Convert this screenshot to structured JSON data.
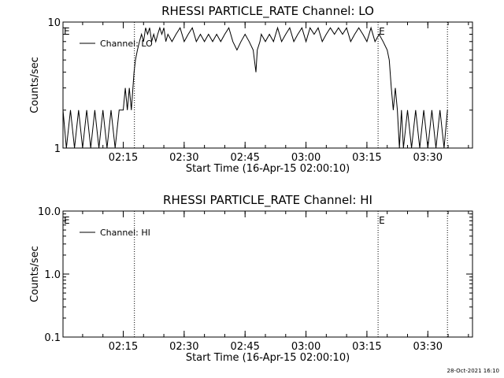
{
  "footer": {
    "timestamp": "28-Oct-2021 16:10"
  },
  "chart_data": [
    {
      "type": "line",
      "title": "RHESSI PARTICLE_RATE Channel: LO",
      "xlabel": "Start Time (16-Apr-15 02:00:10)",
      "ylabel": "Counts/sec",
      "y_scale": "log",
      "xlim": [
        "02:00:10",
        "03:41:00"
      ],
      "ylim": [
        1,
        10
      ],
      "x_ticks": [
        "02:15",
        "02:30",
        "02:45",
        "03:00",
        "03:15",
        "03:30"
      ],
      "y_ticks": [
        "1",
        "10"
      ],
      "legend": {
        "placement": "top-left"
      },
      "vertical_markers": [
        {
          "x": "02:17:45",
          "label": ""
        },
        {
          "x": "03:17:45",
          "label": "E"
        },
        {
          "x": "03:34:50",
          "label": ""
        }
      ],
      "left_marker_label": "E",
      "series": [
        {
          "name": "Channel: LO",
          "color": "#000000",
          "x": [
            "02:00:10",
            "02:01:00",
            "02:02:00",
            "02:03:00",
            "02:04:00",
            "02:05:00",
            "02:06:00",
            "02:07:00",
            "02:08:00",
            "02:09:00",
            "02:10:00",
            "02:11:00",
            "02:12:00",
            "02:13:00",
            "02:14:00",
            "02:15:00",
            "02:15:30",
            "02:16:00",
            "02:16:30",
            "02:17:00",
            "02:17:40",
            "02:18:00",
            "02:18:30",
            "02:19:00",
            "02:19:30",
            "02:20:00",
            "02:20:30",
            "02:21:00",
            "02:21:30",
            "02:22:00",
            "02:22:30",
            "02:23:00",
            "02:23:30",
            "02:24:00",
            "02:24:30",
            "02:25:00",
            "02:25:30",
            "02:26:00",
            "02:27:00",
            "02:28:00",
            "02:29:00",
            "02:30:00",
            "02:31:00",
            "02:32:00",
            "02:33:00",
            "02:34:00",
            "02:35:00",
            "02:36:00",
            "02:37:00",
            "02:38:00",
            "02:39:00",
            "02:40:00",
            "02:41:00",
            "02:42:00",
            "02:43:00",
            "02:44:00",
            "02:45:00",
            "02:46:00",
            "02:47:00",
            "02:47:40",
            "02:48:00",
            "02:48:40",
            "02:49:00",
            "02:50:00",
            "02:51:00",
            "02:52:00",
            "02:53:00",
            "02:54:00",
            "02:55:00",
            "02:56:00",
            "02:57:00",
            "02:58:00",
            "02:59:00",
            "03:00:00",
            "03:01:00",
            "03:02:00",
            "03:03:00",
            "03:04:00",
            "03:05:00",
            "03:06:00",
            "03:07:00",
            "03:08:00",
            "03:09:00",
            "03:10:00",
            "03:11:00",
            "03:12:00",
            "03:13:00",
            "03:14:00",
            "03:15:00",
            "03:16:00",
            "03:17:00",
            "03:18:00",
            "03:19:00",
            "03:20:00",
            "03:20:30",
            "03:21:00",
            "03:21:30",
            "03:22:00",
            "03:22:30",
            "03:23:00",
            "03:23:30",
            "03:24:00",
            "03:25:00",
            "03:26:00",
            "03:27:00",
            "03:28:00",
            "03:29:00",
            "03:30:00",
            "03:31:00",
            "03:32:00",
            "03:33:00",
            "03:34:00",
            "03:34:50"
          ],
          "y": [
            2,
            1,
            2,
            1,
            2,
            1,
            2,
            1,
            2,
            1,
            2,
            1,
            2,
            1,
            2,
            2,
            3,
            2,
            3,
            2,
            4,
            5,
            6,
            7,
            8,
            7,
            9,
            8,
            9,
            7,
            8,
            7,
            8,
            9,
            8,
            9,
            7,
            8,
            7,
            8,
            9,
            7,
            8,
            9,
            7,
            8,
            7,
            8,
            7,
            8,
            7,
            8,
            9,
            7,
            6,
            7,
            8,
            7,
            6,
            4,
            6,
            7,
            8,
            7,
            8,
            7,
            9,
            7,
            8,
            9,
            7,
            8,
            9,
            7,
            9,
            8,
            9,
            7,
            8,
            9,
            8,
            9,
            8,
            9,
            7,
            8,
            9,
            8,
            7,
            9,
            7,
            8,
            7,
            6,
            5,
            3,
            2,
            3,
            2,
            1,
            2,
            1,
            2,
            1,
            2,
            1,
            2,
            1,
            2,
            1,
            2,
            1,
            2
          ]
        }
      ]
    },
    {
      "type": "line",
      "title": "RHESSI PARTICLE_RATE Channel: HI",
      "xlabel": "Start Time (16-Apr-15 02:00:10)",
      "ylabel": "Counts/sec",
      "y_scale": "log",
      "xlim": [
        "02:00:10",
        "03:41:00"
      ],
      "ylim": [
        0.1,
        10
      ],
      "x_ticks": [
        "02:15",
        "02:30",
        "02:45",
        "03:00",
        "03:15",
        "03:30"
      ],
      "y_ticks": [
        "0.1",
        "1.0",
        "10.0"
      ],
      "legend": {
        "placement": "top-left"
      },
      "vertical_markers": [
        {
          "x": "02:17:45",
          "label": ""
        },
        {
          "x": "03:17:45",
          "label": "E"
        },
        {
          "x": "03:34:50",
          "label": ""
        }
      ],
      "left_marker_label": "E",
      "series": [
        {
          "name": "Channel: HI",
          "color": "#000000",
          "x": [],
          "y": []
        }
      ]
    }
  ]
}
